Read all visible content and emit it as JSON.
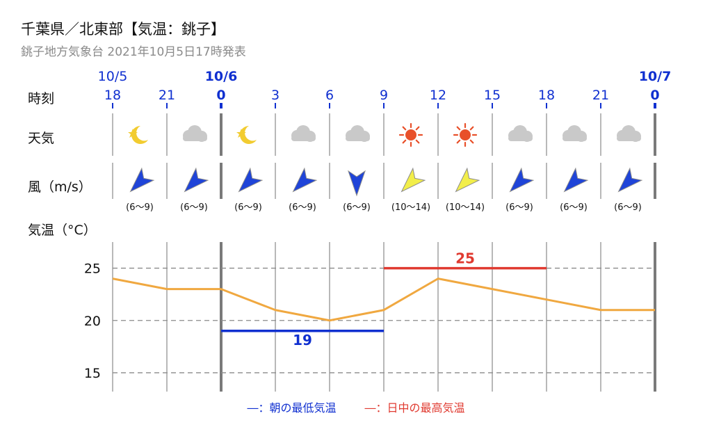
{
  "header": {
    "title": "千葉県／北東部【気温：銚子】",
    "subtitle": "銚子地方気象台 2021年10月5日17時発表"
  },
  "row_labels": {
    "time": "時刻",
    "weather": "天気",
    "wind": "風（m/s）",
    "temp": "気温（°C）"
  },
  "colors": {
    "accent_blue": "#1030d0",
    "low_line": "#1030d0",
    "high_line": "#e03a30",
    "temp_line": "#f0a840",
    "wind_strong": "#1f44d8",
    "wind_light": "#f2ee4a",
    "sun": "#e8502a",
    "moon": "#f2cc30",
    "cloud": "#c9c9c9"
  },
  "chart_data": {
    "type": "line",
    "date_labels": [
      {
        "label": "10/5",
        "at_index": 0,
        "bold": false
      },
      {
        "label": "10/6",
        "at_index": 2,
        "bold": true
      },
      {
        "label": "10/7",
        "at_index": 10,
        "bold": true
      }
    ],
    "hours": [
      "18",
      "21",
      "0",
      "3",
      "6",
      "9",
      "12",
      "15",
      "18",
      "21",
      "0"
    ],
    "day_start_indices": [
      2,
      10
    ],
    "weather": [
      "moon",
      "cloud",
      "moon",
      "cloud",
      "cloud",
      "sun",
      "sun",
      "cloud",
      "cloud",
      "cloud"
    ],
    "wind": [
      {
        "dir": "NE",
        "speed": "(6〜9)",
        "strength": "strong"
      },
      {
        "dir": "NE",
        "speed": "(6〜9)",
        "strength": "strong"
      },
      {
        "dir": "NE",
        "speed": "(6〜9)",
        "strength": "strong"
      },
      {
        "dir": "NE",
        "speed": "(6〜9)",
        "strength": "strong"
      },
      {
        "dir": "N",
        "speed": "(6〜9)",
        "strength": "strong"
      },
      {
        "dir": "NE",
        "speed": "(10〜14)",
        "strength": "light"
      },
      {
        "dir": "NE",
        "speed": "(10〜14)",
        "strength": "light"
      },
      {
        "dir": "NE",
        "speed": "(6〜9)",
        "strength": "strong"
      },
      {
        "dir": "NE",
        "speed": "(6〜9)",
        "strength": "strong"
      },
      {
        "dir": "NE",
        "speed": "(6〜9)",
        "strength": "strong"
      }
    ],
    "temperature": [
      24,
      23,
      23,
      21,
      20,
      21,
      24,
      23,
      22,
      21,
      21
    ],
    "yticks": [
      15,
      20,
      25
    ],
    "ylim": [
      13.2,
      27.5
    ],
    "min_temp": {
      "value": 19,
      "label": "19",
      "from_index": 2,
      "to_index": 5
    },
    "max_temp": {
      "value": 25,
      "label": "25",
      "from_index": 5,
      "to_index": 8
    }
  },
  "legend": {
    "low_label": "―：朝の最低気温",
    "high_label": "―：日中の最高気温"
  }
}
